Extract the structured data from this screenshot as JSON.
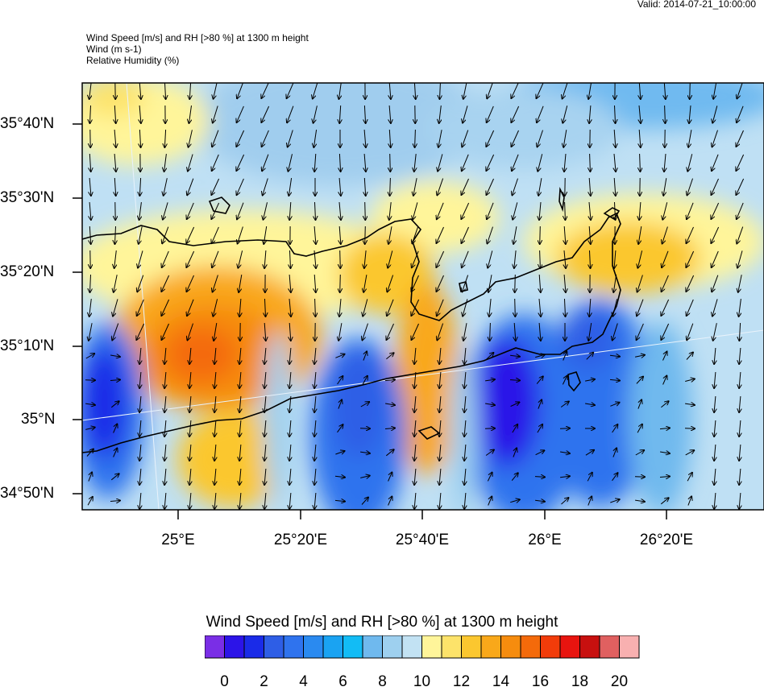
{
  "valid_time": "Valid: 2014-07-21_10:00:00",
  "header": {
    "line1": "Wind Speed [m/s] and RH [>80 %] at 1300 m height",
    "line2": "Wind   (m s-1)",
    "line3": "Relative Humidity   (%)"
  },
  "map": {
    "lat_labels": [
      "35°40'N",
      "35°30'N",
      "35°20'N",
      "35°10'N",
      "35°N",
      "34°50'N"
    ],
    "lon_labels": [
      "25°E",
      "25°20'E",
      "25°40'E",
      "26°E",
      "26°20'E"
    ],
    "wind_field": "southward-pointing arrows over northern half, mixed/northward arrows in blue low-wind pools"
  },
  "colorbar": {
    "title": "Wind Speed [m/s] and RH [>80 %] at 1300 m height",
    "colors": [
      "#7a2ee6",
      "#2c14e8",
      "#1a2be8",
      "#2e5ee6",
      "#2f73ee",
      "#2a8af0",
      "#1aa3f2",
      "#12bcf5",
      "#6fb9ee",
      "#9ed0ef",
      "#c2e2f3",
      "#fff59a",
      "#fde36a",
      "#fbc72f",
      "#f9a81a",
      "#f68c0e",
      "#f46a0a",
      "#f23c0a",
      "#e8140f",
      "#c8100f",
      "#e06060",
      "#f8b0b0"
    ],
    "ticks": [
      "0",
      "2",
      "4",
      "6",
      "8",
      "10",
      "12",
      "14",
      "16",
      "18",
      "20"
    ]
  }
}
